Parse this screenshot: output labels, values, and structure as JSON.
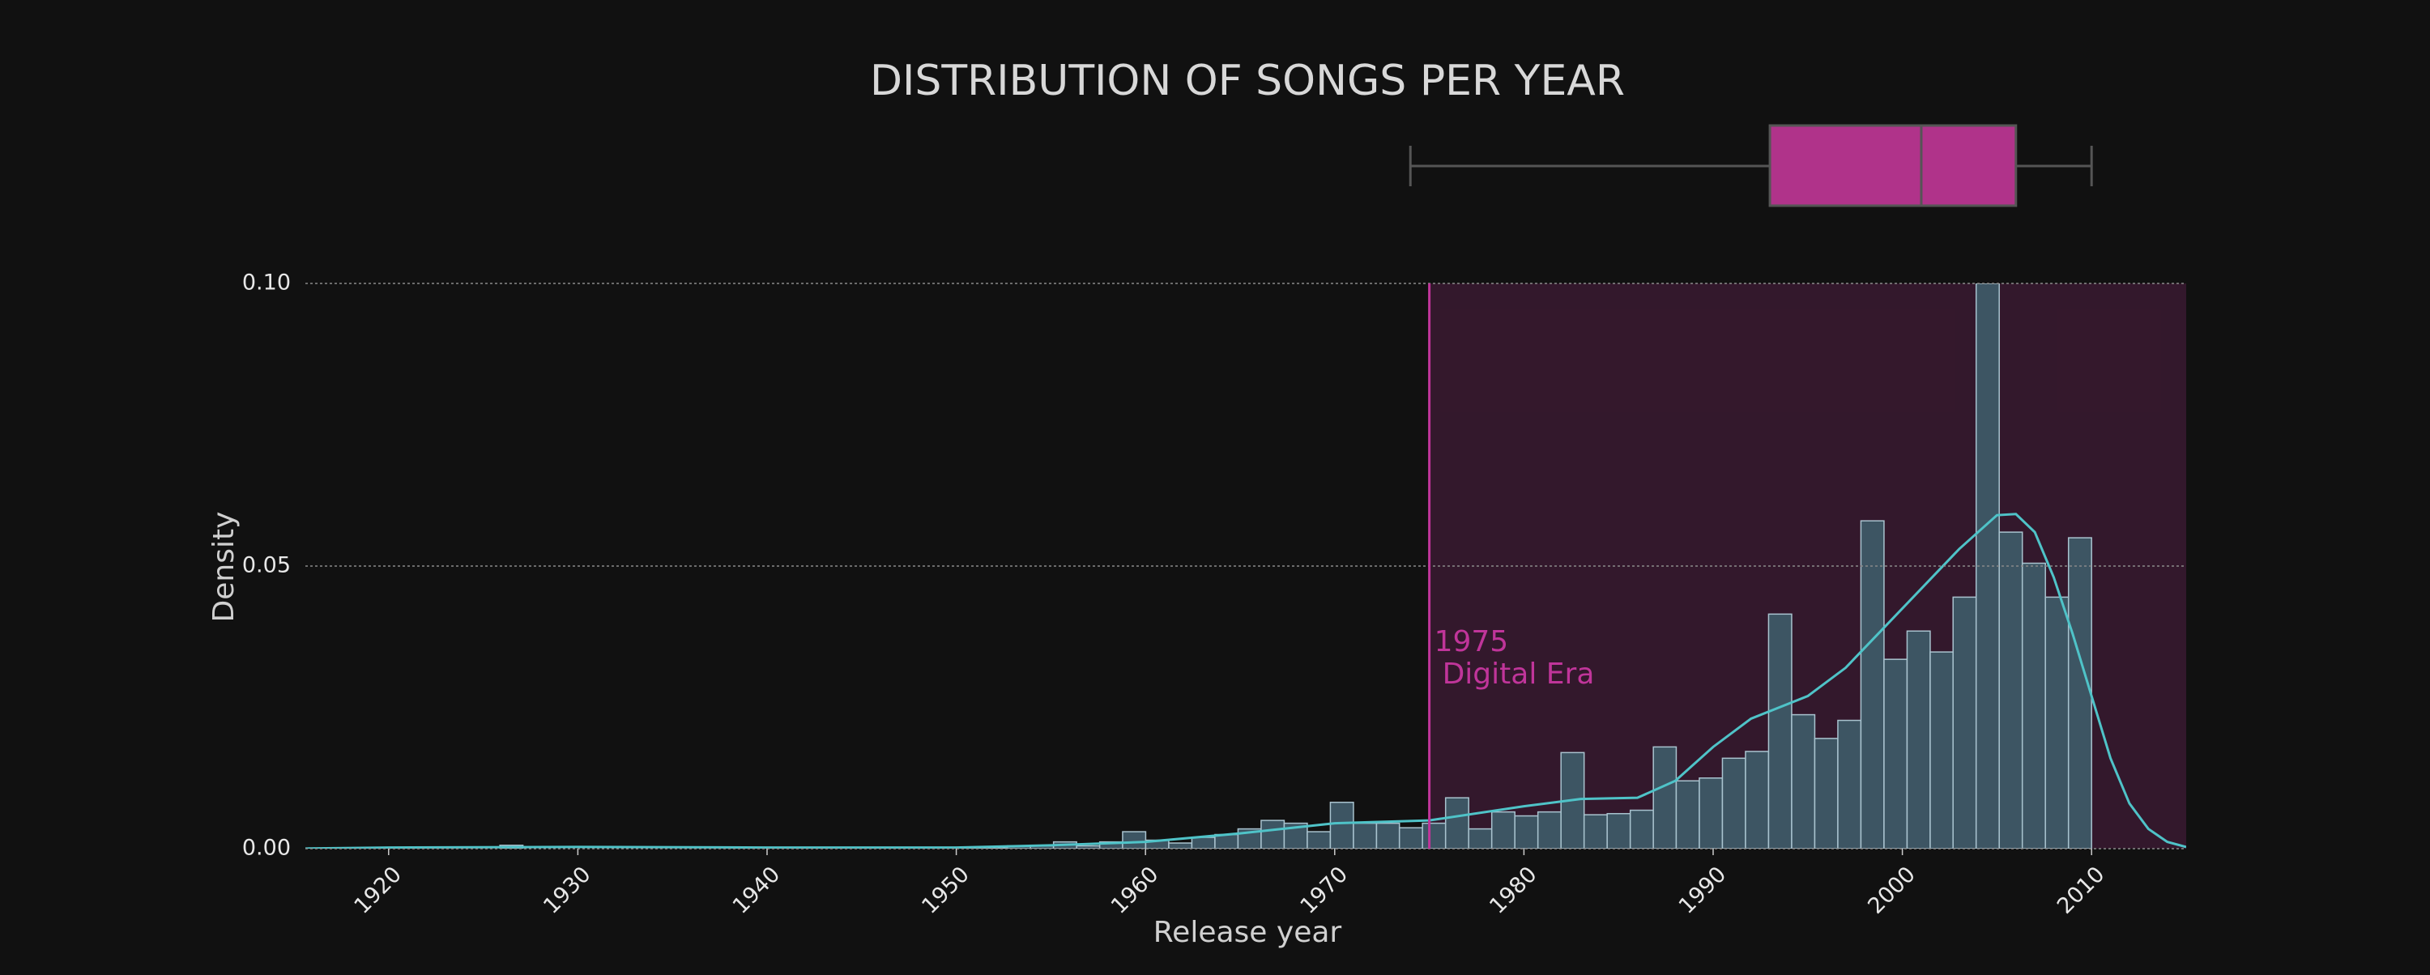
{
  "chart_data": {
    "type": "histogram",
    "title": "DISTRIBUTION OF SONGS PER YEAR",
    "xlabel": "Release year",
    "ylabel": "Density",
    "bins": [
      1921.0,
      1922.22,
      1923.44,
      1924.66,
      1925.88,
      1927.1,
      1928.32,
      1929.53,
      1930.75,
      1931.97,
      1933.19,
      1934.41,
      1935.63,
      1936.85,
      1938.07,
      1939.29,
      1940.51,
      1941.73,
      1942.95,
      1944.16,
      1945.38,
      1946.6,
      1947.82,
      1949.04,
      1950.26,
      1951.48,
      1952.7,
      1953.92,
      1955.14,
      1956.36,
      1957.58,
      1958.79,
      1960.01,
      1961.23,
      1962.45,
      1963.67,
      1964.89,
      1966.11,
      1967.33,
      1968.55,
      1969.77,
      1970.99,
      1972.21,
      1973.42,
      1974.64,
      1975.86,
      1977.08,
      1978.3,
      1979.52,
      1980.74,
      1981.96,
      1983.18,
      1984.4,
      1985.62,
      1986.84,
      1988.05,
      1989.27,
      1990.49,
      1991.71,
      1992.93,
      1994.15,
      1995.37,
      1996.59,
      1997.81,
      1999.03,
      2000.25,
      2001.47,
      2002.68,
      2003.9,
      2005.12,
      2006.34,
      2007.56,
      2008.78,
      2010.0
    ],
    "counts": [
      0,
      0,
      0,
      0,
      0.0006,
      0,
      0,
      0,
      0,
      0,
      0,
      0,
      0,
      0,
      0,
      0,
      0,
      0,
      0,
      0,
      0,
      0,
      0,
      0,
      0.0002,
      0.0002,
      0.0005,
      0.0005,
      0.0012,
      0.0005,
      0.0012,
      0.003,
      0.0015,
      0.001,
      0.002,
      0.0025,
      0.0035,
      0.005,
      0.0045,
      0.003,
      0.0082,
      0.0045,
      0.0045,
      0.0037,
      0.0045,
      0.009,
      0.0035,
      0.0065,
      0.0058,
      0.0065,
      0.017,
      0.006,
      0.0062,
      0.0068,
      0.018,
      0.012,
      0.0125,
      0.016,
      0.0172,
      0.0415,
      0.0237,
      0.0195,
      0.0227,
      0.058,
      0.0335,
      0.0385,
      0.0348,
      0.0445,
      0.1,
      0.056,
      0.0505,
      0.0445,
      0.055
    ],
    "color": "#3d5563",
    "edgecolor": "#a9c3cf",
    "xlim": [
      1915.6,
      2015
    ],
    "ylim": [
      0,
      0.1
    ],
    "xticks": [
      1920,
      1930,
      1940,
      1950,
      1960,
      1970,
      1980,
      1990,
      2000,
      2010
    ],
    "yticks": [
      {
        "value": 0,
        "label": "0.00"
      },
      {
        "value": 0.05,
        "label": "0.05"
      },
      {
        "value": 0.1,
        "label": "0.10"
      }
    ],
    "grid": true,
    "kde": {
      "color": "#4fc3c8",
      "x": [
        1915,
        1920,
        1930,
        1940,
        1950,
        1955,
        1960,
        1965,
        1970,
        1975,
        1980,
        1983,
        1986,
        1988,
        1990,
        1992,
        1995,
        1997,
        1999,
        2001,
        2003,
        2005,
        2006,
        2007,
        2008,
        2009,
        2010,
        2011,
        2012,
        2013,
        2014,
        2015
      ],
      "y": [
        0,
        0.0002,
        0.0003,
        0.0002,
        0.0002,
        0.0006,
        0.0012,
        0.0027,
        0.0045,
        0.005,
        0.0075,
        0.0088,
        0.009,
        0.012,
        0.018,
        0.023,
        0.027,
        0.032,
        0.039,
        0.046,
        0.053,
        0.059,
        0.0592,
        0.056,
        0.048,
        0.038,
        0.027,
        0.016,
        0.008,
        0.0035,
        0.0012,
        0.0003
      ]
    },
    "boxplot": {
      "min": 1974,
      "q1": 1993,
      "median": 2001,
      "q3": 2006,
      "max": 2010,
      "color": "#b0338a"
    },
    "highlight": {
      "start": 1975,
      "color": "#c0359a",
      "lines": [
        "1975",
        "Digital Era"
      ]
    }
  }
}
